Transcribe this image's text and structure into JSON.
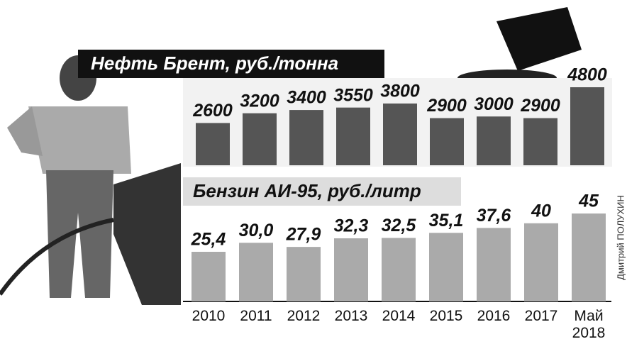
{
  "chart_data": [
    {
      "type": "bar",
      "title": "Нефть Брент, руб./тонна",
      "color": "#555555",
      "values": [
        2600,
        3200,
        3400,
        3550,
        3800,
        2900,
        3000,
        2900,
        4800
      ]
    },
    {
      "type": "bar",
      "title": "Бензин АИ-95, руб./литр",
      "color": "#aaaaaa",
      "categories": [
        "2010",
        "2011",
        "2012",
        "2013",
        "2014",
        "2015",
        "2016",
        "2017",
        "Май 2018"
      ],
      "values": [
        25.4,
        30.0,
        27.9,
        32.3,
        32.5,
        35.1,
        37.6,
        40,
        45
      ],
      "value_labels": [
        "25,4",
        "30,0",
        "27,9",
        "32,3",
        "32,5",
        "35,1",
        "37,6",
        "40",
        "45"
      ]
    }
  ],
  "credit": "Дмитрий ПОЛУХИН"
}
